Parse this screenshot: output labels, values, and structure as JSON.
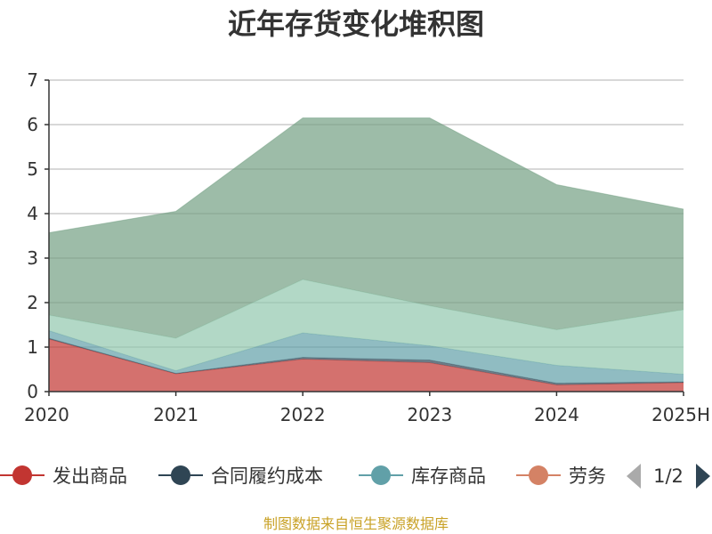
{
  "chart_data": {
    "type": "area",
    "stacked": true,
    "title": "近年存货变化堆积图",
    "ylabel": "",
    "xlabel": "",
    "categories": [
      "2020",
      "2021",
      "2022",
      "2023",
      "2024",
      "2025H"
    ],
    "ylim": [
      0,
      7
    ],
    "yticks": [
      0,
      1,
      2,
      3,
      4,
      5,
      6,
      7
    ],
    "grid": true,
    "series": [
      {
        "name": "发出商品",
        "color": "#c23531",
        "values": [
          1.18,
          0.4,
          0.73,
          0.65,
          0.15,
          0.2
        ]
      },
      {
        "name": "合同履约成本",
        "color": "#2f4554",
        "values": [
          0.02,
          0.01,
          0.04,
          0.06,
          0.04,
          0.02
        ]
      },
      {
        "name": "库存商品",
        "color": "#61a0a8",
        "values": [
          0.17,
          0.06,
          0.55,
          0.32,
          0.4,
          0.17
        ]
      },
      {
        "name": "劳务",
        "color": "#d48265",
        "values": [
          0,
          0,
          0,
          0,
          0,
          0
        ]
      },
      {
        "name": "",
        "color": "#91c7ae",
        "values": [
          0.35,
          0.73,
          1.2,
          0.9,
          0.8,
          1.45
        ]
      },
      {
        "name": "",
        "color": "#749f83",
        "values": [
          1.85,
          2.85,
          3.63,
          4.22,
          3.26,
          2.26
        ]
      }
    ],
    "legend": {
      "placement": "bottom",
      "page": "1/2"
    }
  },
  "source": "制图数据来自恒生聚源数据库"
}
